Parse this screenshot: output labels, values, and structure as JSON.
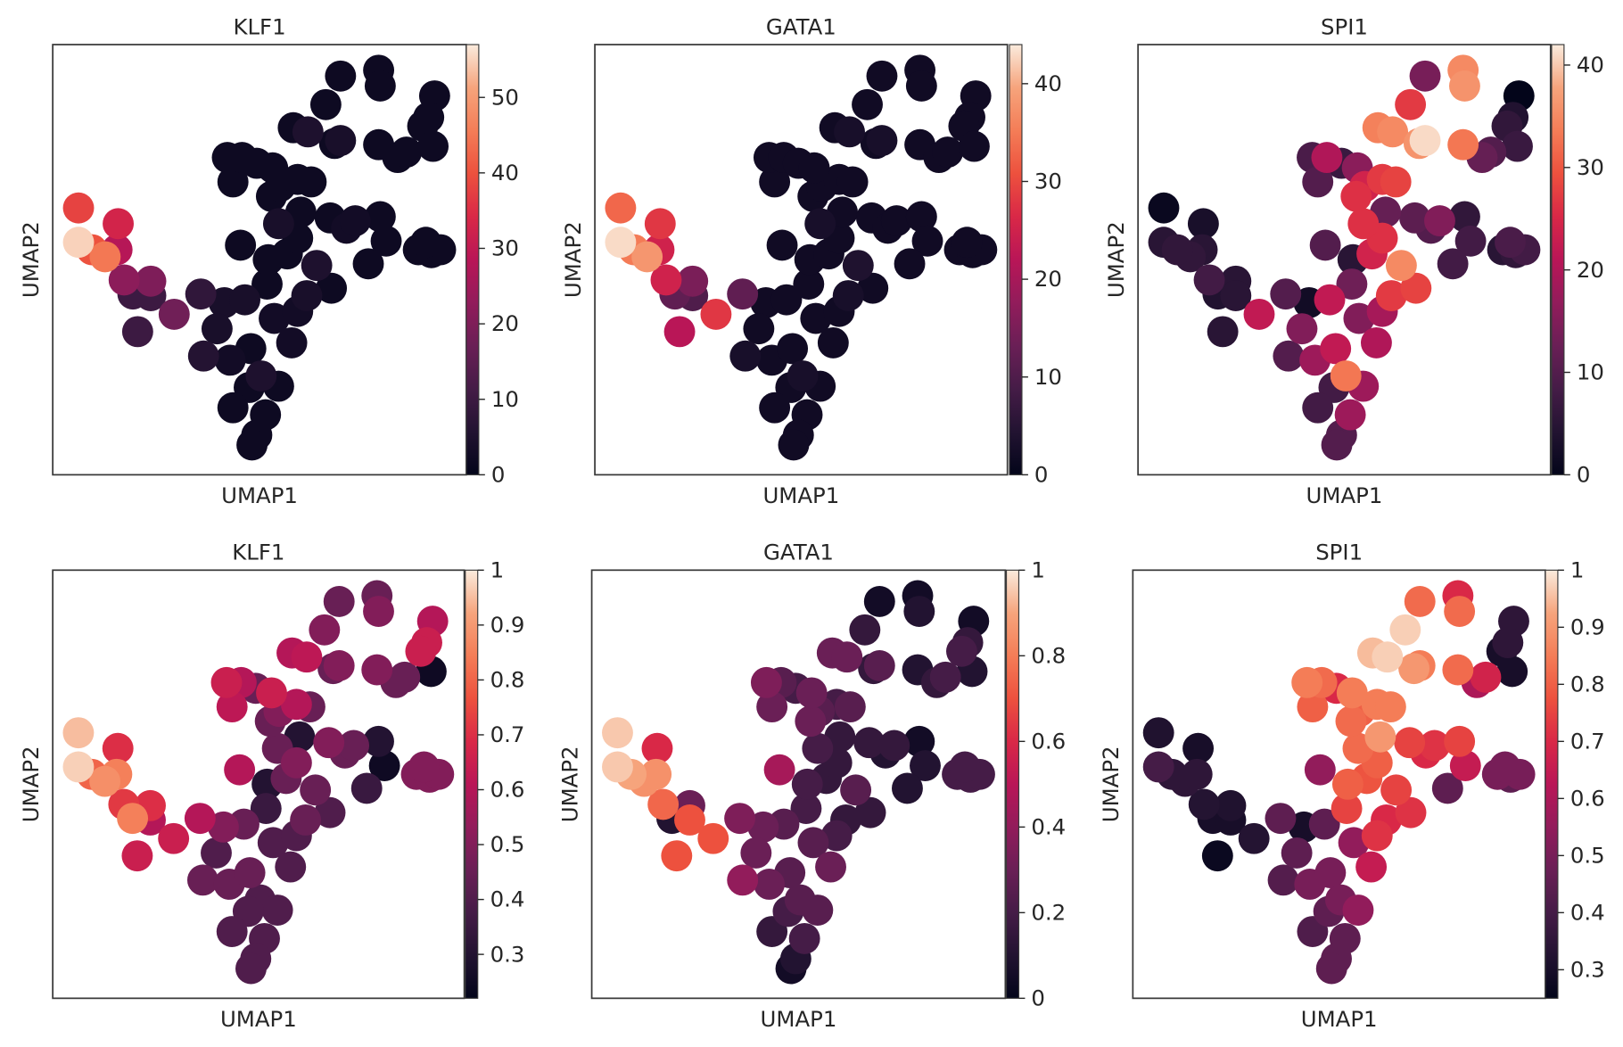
{
  "chart_data": [
    {
      "type": "scatter",
      "title": "KLF1",
      "xlabel": "UMAP1",
      "ylabel": "UMAP2",
      "colormap": "rocket",
      "color_range": [
        0,
        57
      ],
      "colorbar_ticks": [
        "0",
        "10",
        "20",
        "30",
        "40",
        "50"
      ],
      "colorbar_tick_values": [
        0,
        10,
        20,
        30,
        40,
        50
      ],
      "values": [
        38,
        33,
        55,
        45,
        40,
        28,
        22,
        20,
        10,
        10,
        18,
        10,
        8,
        4,
        4,
        4,
        6,
        3,
        2,
        5,
        2,
        2,
        2,
        2,
        2,
        2,
        3,
        3,
        3,
        4,
        2,
        5,
        2,
        2,
        2,
        2,
        2,
        4,
        2,
        2,
        3,
        3,
        2,
        2,
        2,
        2,
        2,
        2,
        2,
        2,
        2,
        2,
        2,
        2,
        2,
        2,
        2,
        2,
        2,
        5,
        2,
        2,
        4,
        2,
        2,
        2,
        2,
        2,
        2,
        2,
        2,
        2,
        2
      ]
    },
    {
      "type": "scatter",
      "title": "GATA1",
      "xlabel": "UMAP1",
      "ylabel": "UMAP2",
      "colormap": "rocket",
      "color_range": [
        0,
        44
      ],
      "colorbar_ticks": [
        "0",
        "10",
        "20",
        "30",
        "40"
      ],
      "colorbar_tick_values": [
        0,
        10,
        20,
        30,
        40
      ],
      "values": [
        33,
        28,
        43,
        38,
        35,
        25,
        25,
        15,
        12,
        10,
        28,
        22,
        12,
        2,
        2,
        2,
        3,
        2,
        2,
        3,
        2,
        2,
        2,
        2,
        2,
        2,
        2,
        2,
        2,
        3,
        2,
        4,
        2,
        2,
        2,
        2,
        2,
        3,
        2,
        2,
        2,
        2,
        2,
        2,
        2,
        2,
        2,
        2,
        2,
        2,
        2,
        2,
        2,
        2,
        2,
        2,
        2,
        2,
        2,
        3,
        2,
        2,
        3,
        2,
        2,
        2,
        2,
        2,
        2,
        2,
        2,
        2,
        2
      ]
    },
    {
      "type": "scatter",
      "title": "SPI1",
      "xlabel": "UMAP1",
      "ylabel": "UMAP2",
      "colormap": "rocket",
      "color_range": [
        0,
        42
      ],
      "colorbar_ticks": [
        "0",
        "10",
        "20",
        "30",
        "40"
      ],
      "colorbar_tick_values": [
        0,
        10,
        20,
        30,
        40
      ],
      "values": [
        1,
        3,
        5,
        6,
        6,
        5,
        8,
        5,
        4,
        5,
        22,
        5,
        10,
        2,
        22,
        15,
        10,
        18,
        22,
        33,
        18,
        8,
        8,
        18,
        10,
        10,
        15,
        20,
        19,
        27,
        28,
        35,
        13,
        5,
        24,
        26,
        10,
        26,
        12,
        11,
        10,
        15,
        6,
        8,
        8,
        5,
        6,
        8,
        9,
        26,
        24,
        27,
        28,
        10,
        9,
        20,
        7,
        16,
        34,
        35,
        27,
        36,
        41,
        14,
        35,
        36,
        33,
        12,
        10,
        0,
        4,
        6,
        7
      ]
    },
    {
      "type": "scatter",
      "title": "KLF1",
      "xlabel": "UMAP1",
      "ylabel": "UMAP2",
      "colormap": "rocket",
      "color_range": [
        0.22,
        1
      ],
      "colorbar_ticks": [
        "0.3",
        "0.4",
        "0.5",
        "0.6",
        "0.7",
        "0.8",
        "0.9",
        "1"
      ],
      "colorbar_tick_values": [
        0.3,
        0.4,
        0.5,
        0.6,
        0.7,
        0.8,
        0.9,
        1
      ],
      "values": [
        0.95,
        0.7,
        0.97,
        0.88,
        0.8,
        0.85,
        0.72,
        0.7,
        0.85,
        0.6,
        0.65,
        0.65,
        0.6,
        0.5,
        0.45,
        0.4,
        0.45,
        0.45,
        0.45,
        0.4,
        0.4,
        0.4,
        0.4,
        0.4,
        0.4,
        0.4,
        0.4,
        0.4,
        0.4,
        0.45,
        0.4,
        0.45,
        0.35,
        0.3,
        0.45,
        0.5,
        0.6,
        0.45,
        0.3,
        0.5,
        0.45,
        0.45,
        0.3,
        0.25,
        0.35,
        0.5,
        0.5,
        0.5,
        0.5,
        0.45,
        0.5,
        0.6,
        0.45,
        0.62,
        0.65,
        0.6,
        0.45,
        0.65,
        0.6,
        0.62,
        0.5,
        0.45,
        0.5,
        0.45,
        0.45,
        0.5,
        0.5,
        0.45,
        0.45,
        0.6,
        0.65,
        0.65,
        0.25
      ]
    },
    {
      "type": "scatter",
      "title": "GATA1",
      "xlabel": "UMAP1",
      "ylabel": "UMAP2",
      "colormap": "rocket",
      "color_range": [
        0,
        1
      ],
      "colorbar_ticks": [
        "0",
        "0.2",
        "0.4",
        "0.6",
        "0.8",
        "1"
      ],
      "colorbar_tick_values": [
        0,
        0.2,
        0.4,
        0.6,
        0.8,
        1
      ],
      "values": [
        0.95,
        0.6,
        0.95,
        0.85,
        0.9,
        0.85,
        0.75,
        0.3,
        0.1,
        0.7,
        0.7,
        0.7,
        0.35,
        0.3,
        0.25,
        0.3,
        0.4,
        0.3,
        0.25,
        0.25,
        0.25,
        0.2,
        0.15,
        0.2,
        0.1,
        0.05,
        0.25,
        0.3,
        0.2,
        0.15,
        0.15,
        0.25,
        0.2,
        0.2,
        0.15,
        0.15,
        0.45,
        0.2,
        0.15,
        0.15,
        0.1,
        0.15,
        0.05,
        0.1,
        0.1,
        0.2,
        0.2,
        0.2,
        0.2,
        0.3,
        0.25,
        0.2,
        0.25,
        0.3,
        0.35,
        0.25,
        0.2,
        0.3,
        0.3,
        0.3,
        0.15,
        0.15,
        0.25,
        0.05,
        0.05,
        0.1,
        0.1,
        0.15,
        0.2,
        0.05,
        0.15,
        0.2,
        0.1
      ]
    },
    {
      "type": "scatter",
      "title": "SPI1",
      "xlabel": "UMAP1",
      "ylabel": "UMAP2",
      "colormap": "rocket",
      "color_range": [
        0.25,
        1
      ],
      "colorbar_ticks": [
        "0.3",
        "0.4",
        "0.5",
        "0.6",
        "0.7",
        "0.8",
        "0.9",
        "1"
      ],
      "colorbar_tick_values": [
        0.3,
        0.4,
        0.5,
        0.6,
        0.7,
        0.8,
        0.9,
        1
      ],
      "values": [
        0.32,
        0.3,
        0.4,
        0.35,
        0.35,
        0.35,
        0.33,
        0.32,
        0.3,
        0.3,
        0.33,
        0.27,
        0.45,
        0.3,
        0.45,
        0.45,
        0.43,
        0.5,
        0.5,
        0.5,
        0.55,
        0.45,
        0.42,
        0.45,
        0.45,
        0.45,
        0.55,
        0.65,
        0.72,
        0.7,
        0.72,
        0.75,
        0.75,
        0.8,
        0.78,
        0.8,
        0.55,
        0.82,
        0.9,
        0.75,
        0.7,
        0.72,
        0.75,
        0.65,
        0.45,
        0.5,
        0.45,
        0.5,
        0.5,
        0.82,
        0.8,
        0.85,
        0.85,
        0.8,
        0.85,
        0.82,
        0.7,
        0.85,
        0.95,
        0.97,
        0.97,
        0.9,
        0.85,
        0.82,
        0.7,
        0.82,
        0.82,
        0.6,
        0.68,
        0.35,
        0.35,
        0.3,
        0.3
      ]
    }
  ],
  "embedding": {
    "xlim": [
      0,
      10
    ],
    "ylim": [
      0,
      10
    ],
    "x": [
      0.44,
      1.44,
      0.44,
      1.11,
      0.78,
      1.41,
      1.59,
      2.26,
      1.81,
      2.26,
      2.85,
      1.93,
      3.52,
      4.11,
      4.63,
      3.93,
      3.59,
      4.26,
      4.78,
      5.04,
      5.48,
      4.74,
      4.33,
      5.15,
      4.93,
      4.81,
      5.37,
      5.81,
      5.96,
      6.19,
      6.81,
      6.44,
      5.19,
      5.22,
      5.7,
      5.96,
      4.52,
      5.48,
      6.04,
      6.78,
      7.19,
      7.41,
      8.04,
      8.19,
      7.74,
      9.0,
      9.33,
      9.56,
      9.19,
      5.3,
      5.52,
      5.96,
      6.3,
      4.33,
      4.19,
      4.56,
      4.93,
      5.33,
      5.85,
      6.22,
      6.67,
      6.89,
      7.04,
      7.04,
      8.0,
      8.04,
      8.0,
      8.48,
      8.7,
      9.41,
      9.26,
      9.11,
      9.37
    ],
    "y": [
      6.25,
      5.87,
      5.42,
      5.07,
      5.24,
      5.24,
      4.51,
      4.48,
      4.17,
      4.13,
      3.68,
      3.26,
      4.17,
      3.96,
      4.03,
      3.33,
      2.67,
      2.57,
      2.85,
      2.19,
      1.94,
      1.91,
      1.42,
      1.25,
      0.76,
      0.52,
      3.58,
      2.99,
      3.75,
      4.13,
      4.31,
      4.86,
      4.41,
      5.0,
      5.14,
      5.52,
      5.35,
      5.87,
      6.15,
      6.01,
      5.76,
      5.94,
      6.04,
      5.45,
      4.9,
      5.24,
      5.17,
      5.24,
      5.42,
      6.53,
      6.77,
      6.94,
      6.88,
      6.88,
      7.47,
      7.47,
      7.33,
      7.22,
      8.19,
      8.09,
      8.75,
      7.81,
      7.88,
      9.44,
      9.58,
      9.2,
      7.78,
      7.47,
      7.6,
      8.96,
      8.44,
      8.23,
      7.74
    ]
  },
  "colors": {
    "rocket": [
      "#03051a",
      "#221331",
      "#451c47",
      "#6a1f56",
      "#921c5b",
      "#b91657",
      "#d92847",
      "#ed513e",
      "#f47d57",
      "#f6a47c",
      "#faebdd"
    ],
    "axis": "#262626"
  }
}
